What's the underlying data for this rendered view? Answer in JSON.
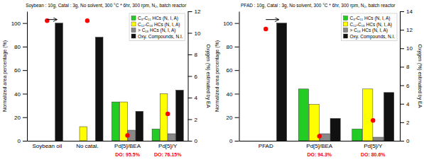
{
  "chart_data": [
    {
      "type": "bar",
      "title": "Soybean : 10g, Catal : 3g, No solvent, 300 °C * 6hr, 300 rpm, N₂, batch reactor",
      "categories": [
        "Soybean oil",
        "No catal.",
        "Pd[5]/BEA",
        "Pd[5]/Y"
      ],
      "series": [
        {
          "name": "C₈-C₁₁ HCs (N, I, A)",
          "color": "#22cc22",
          "values": [
            0,
            0,
            33,
            10
          ]
        },
        {
          "name": "C₁₂-C₁₈ HCs (N, I, A)",
          "color": "#ffff00",
          "values": [
            0,
            12,
            33,
            40
          ]
        },
        {
          "name": "> C₁₈ HCs (N, I, A)",
          "color": "#888888",
          "values": [
            0,
            0,
            9,
            6
          ]
        },
        {
          "name": "Oxy. Compounds, N.I.",
          "color": "#111111",
          "values": [
            100,
            88,
            25,
            43
          ]
        },
        {
          "type": "scatter",
          "marker": "circle",
          "color": "#ff0000",
          "values": [
            102,
            102,
            null,
            null
          ]
        },
        {
          "type": "scatter",
          "marker": "circle",
          "color": "#ff0000",
          "axis": "y2",
          "values": [
            null,
            null,
            0.5,
            2.5
          ]
        }
      ],
      "ylabel": "Normalized area percentage (%)",
      "y2label": "Oxygen (%) estimated by EA",
      "ylim": [
        0,
        110
      ],
      "yticks": [
        0,
        20,
        40,
        60,
        80,
        100
      ],
      "y2lim": [
        0,
        12
      ],
      "y2ticks": [
        0,
        2,
        4,
        6,
        8,
        10,
        12
      ],
      "annotations": [
        {
          "type": "arrow",
          "x": "Soybean oil",
          "y": 103
        },
        {
          "text": "DO: 95.5%",
          "x": "Pd[5]/BEA",
          "color": "#ff0000"
        },
        {
          "text": "DO: 76.15%",
          "x": "Pd[5]/Y",
          "color": "#ff0000"
        }
      ],
      "grid": false,
      "legend": "upper right"
    },
    {
      "type": "bar",
      "title": "PFAD : 10g, Catal : 3g, No solvent, 300 °C * 6hr, 300 rpm, N₂, batch reactor",
      "categories": [
        "PFAD",
        "Pd[5]/BEA",
        "Pd[5]/Y"
      ],
      "series": [
        {
          "name": "C₈-C₁₁ HCs (N, I, A)",
          "color": "#22cc22",
          "values": [
            0,
            44,
            10
          ]
        },
        {
          "name": "C₁₂-C₁₈ HCs (N, I, A)",
          "color": "#ffff00",
          "values": [
            0,
            31,
            44
          ]
        },
        {
          "name": "> C₁₈ HCs (N, I, A)",
          "color": "#888888",
          "values": [
            0,
            6,
            3
          ]
        },
        {
          "name": "Oxy. Compounds, N.I.",
          "color": "#111111",
          "values": [
            100,
            19,
            41
          ]
        },
        {
          "type": "scatter",
          "marker": "circle",
          "color": "#ff0000",
          "values": [
            95,
            null,
            null
          ]
        },
        {
          "type": "scatter",
          "marker": "circle",
          "color": "#ff0000",
          "axis": "y2",
          "values": [
            null,
            0.5,
            2.2
          ]
        }
      ],
      "ylabel": "Normalized area percentage (%)",
      "y2label": "Oxygen (%) estimated by EA",
      "ylim": [
        0,
        110
      ],
      "yticks": [
        0,
        20,
        40,
        60,
        80,
        100
      ],
      "y2lim": [
        0,
        14
      ],
      "y2ticks": [
        0,
        2,
        4,
        6,
        8,
        10,
        12,
        14
      ],
      "annotations": [
        {
          "type": "arrow",
          "x": "PFAD",
          "y": 103
        },
        {
          "text": "DO: 94.3%",
          "x": "Pd[5]/BEA",
          "color": "#ff0000"
        },
        {
          "text": "DO: 80.6%",
          "x": "Pd[5]/Y",
          "color": "#ff0000"
        }
      ],
      "grid": false,
      "legend": "upper right"
    }
  ]
}
